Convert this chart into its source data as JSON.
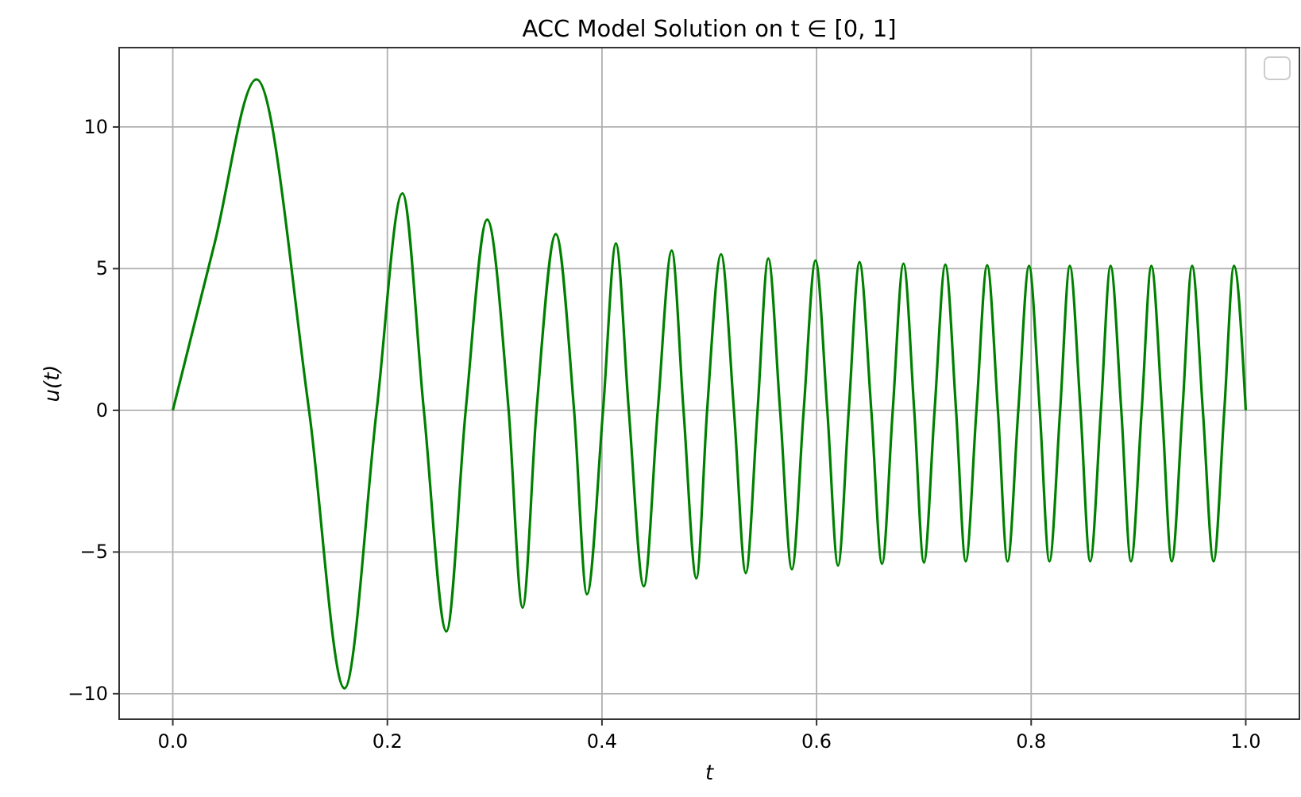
{
  "chart_data": {
    "type": "line",
    "title": "ACC Model Solution on t ∈ [0, 1]",
    "xlabel": "t",
    "ylabel": "u(t)",
    "xlim": [
      -0.05,
      1.05
    ],
    "xticks": [
      {
        "value": 0,
        "label": "0.0"
      },
      {
        "value": 0.2,
        "label": "0.2"
      },
      {
        "value": 0.4,
        "label": "0.4"
      },
      {
        "value": 0.6,
        "label": "0.6"
      },
      {
        "value": 0.8,
        "label": "0.8"
      },
      {
        "value": 1,
        "label": "1.0"
      }
    ],
    "ylim": [
      -10.9,
      12.8
    ],
    "yticks": [
      {
        "value": -10,
        "label": "−10"
      },
      {
        "value": -5,
        "label": "−5"
      },
      0,
      5,
      10
    ],
    "grid": true,
    "line_style": "solid",
    "marker": "none",
    "series": [
      {
        "color": "#008000",
        "x": [
          0,
          0.039,
          0.078,
          0.127,
          0.16,
          0.19,
          0.214,
          0.234,
          0.255,
          0.273,
          0.293,
          0.313,
          0.326,
          0.339,
          0.357,
          0.374,
          0.386,
          0.401,
          0.413,
          0.425,
          0.439,
          0.452,
          0.465,
          0.476,
          0.488,
          0.498,
          0.511,
          0.523,
          0.534,
          0.545,
          0.555,
          0.566,
          0.577,
          0.588,
          0.599,
          0.61,
          0.62,
          0.63,
          0.64,
          0.651,
          0.661,
          0.671,
          0.681,
          0.691,
          0.7,
          0.71,
          0.72,
          0.73,
          0.739,
          0.749,
          0.759,
          0.769,
          0.778,
          0.788,
          0.798,
          0.808,
          0.817,
          0.827,
          0.836,
          0.846,
          0.855,
          0.865,
          0.874,
          0.884,
          0.893,
          0.903,
          0.912,
          0.922,
          0.931,
          0.941,
          0.95,
          0.96,
          0.97,
          0.98,
          0.989,
          1.0
        ],
        "values": [
          0,
          5.9,
          11.68,
          0,
          -9.81,
          0,
          7.66,
          0,
          -7.8,
          0,
          6.73,
          0,
          -6.96,
          0,
          6.22,
          0,
          -6.49,
          0,
          5.89,
          0,
          -6.21,
          0,
          5.64,
          0,
          -5.93,
          0,
          5.51,
          0,
          -5.74,
          0,
          5.36,
          0,
          -5.61,
          0,
          5.29,
          0,
          -5.48,
          0,
          5.23,
          0,
          -5.42,
          0,
          5.18,
          0,
          -5.37,
          0,
          5.14,
          0,
          -5.33,
          0,
          5.12,
          0,
          -5.33,
          0,
          5.1,
          0,
          -5.33,
          0,
          5.1,
          0,
          -5.33,
          0,
          5.1,
          0,
          -5.33,
          0,
          5.1,
          0,
          -5.33,
          0,
          5.1,
          0,
          -5.33,
          0,
          5.1,
          0
        ]
      }
    ]
  }
}
